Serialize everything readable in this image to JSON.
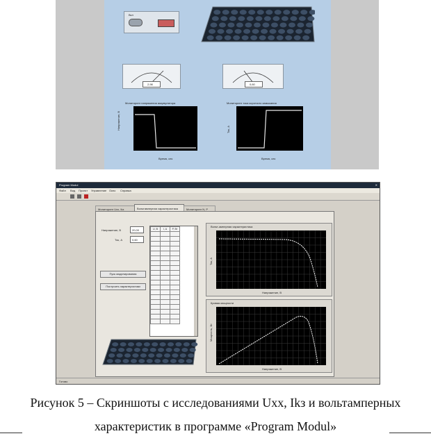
{
  "top_screenshot": {
    "switch_label": "Вкл",
    "left_meter_value": "2,98",
    "right_meter_value": "0,60",
    "left_plot_title": "Мониторинг напряжения аккумулятора",
    "right_plot_title": "Мониторинг тока короткого замыкания",
    "left_plot_ylabel": "Напряжение, В",
    "right_plot_ylabel": "Ток, А",
    "left_plot_xlabel": "Время, сек",
    "right_plot_xlabel": "Время, сек"
  },
  "bottom_screenshot": {
    "window_title": "Program Modul",
    "menu": [
      "Файл",
      "Вид",
      "Проект",
      "Управление",
      "Окно",
      "Справка"
    ],
    "tabs": [
      {
        "label": "Мониторинг Uxx, Ikз"
      },
      {
        "label": "Вольтамперная характеристика"
      },
      {
        "label": "Мониторинг N, P"
      }
    ],
    "field1_label": "Напряжение, В",
    "field1_value": "20,00",
    "field2_label": "Ток, А",
    "field2_value": "0,60",
    "button1_label": "Пуск моделирования",
    "button2_label": "Построить характеристики",
    "table_headers": [
      "U, В",
      "I, А",
      "P, Вт"
    ],
    "table_rows": 19,
    "plot1_title": "Вольт-амперная характеристика",
    "plot1_xlabel": "Напряжение, В",
    "plot1_ylabel": "Ток, А",
    "plot2_title": "Кривая мощности",
    "plot2_xlabel": "Напряжение, В",
    "plot2_ylabel": "Мощность, Вт",
    "x_ticks": [
      "0",
      "1",
      "2",
      "3",
      "4",
      "5",
      "6",
      "7",
      "8",
      "9",
      "10",
      "11",
      "12",
      "13",
      "14",
      "15",
      "16",
      "17",
      "18",
      "19",
      "20"
    ],
    "status": "Готово"
  },
  "caption": {
    "line1": "Рисунок 5 – Скриншоты с исследованиями Uxx, Ikз и вольтамперных",
    "line2": "характеристик в программе «Program Modul»"
  }
}
